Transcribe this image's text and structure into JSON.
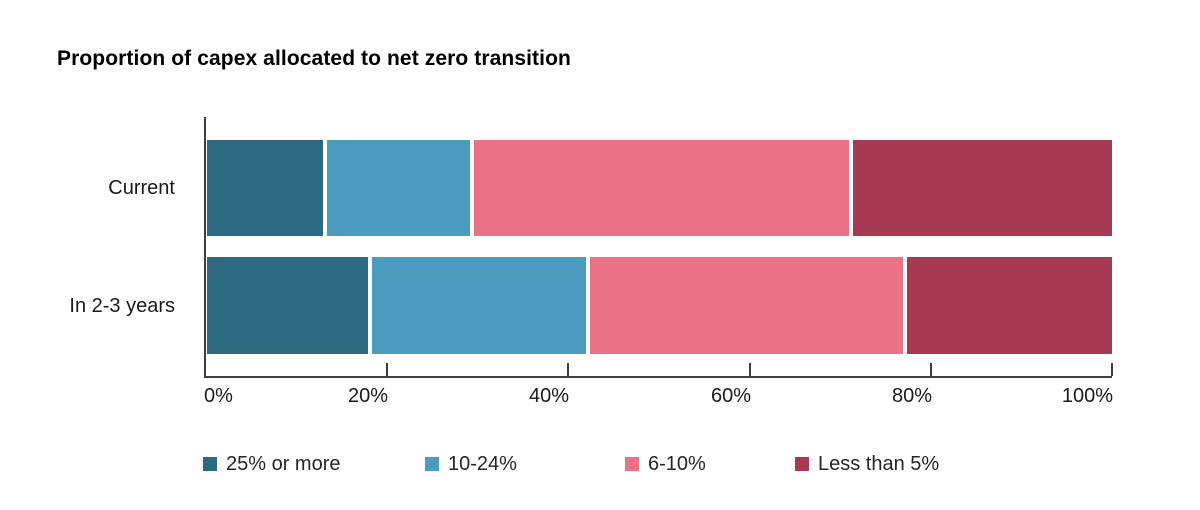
{
  "title": "Proportion of capex allocated to net zero transition",
  "chart_data": {
    "type": "bar",
    "stacked": true,
    "orientation": "horizontal",
    "title": "Proportion of capex allocated to net zero transition",
    "categories": [
      "Current",
      "In 2-3 years"
    ],
    "series": [
      {
        "name": "25% or more",
        "color": "#2e6a7f",
        "values": [
          13,
          18
        ]
      },
      {
        "name": "10-24%",
        "color": "#4c9cbf",
        "values": [
          16,
          24
        ]
      },
      {
        "name": "6-10%",
        "color": "#e97287",
        "values": [
          42,
          35
        ]
      },
      {
        "name": "Less than 5%",
        "color": "#a63a52",
        "values": [
          29,
          23
        ]
      }
    ],
    "x_axis": {
      "range": [
        0,
        100
      ],
      "tick_values": [
        0,
        20,
        40,
        60,
        80,
        100
      ],
      "tick_labels": [
        "0%",
        "20%",
        "40%",
        "60%",
        "80%",
        "100%"
      ]
    },
    "ylabel": "",
    "xlabel": "",
    "grid": false,
    "legend_position": "bottom"
  },
  "colors": {
    "axis": "#3d3d3d",
    "text": "#1a1a1a",
    "title": "#000000",
    "background": "#ffffff"
  }
}
